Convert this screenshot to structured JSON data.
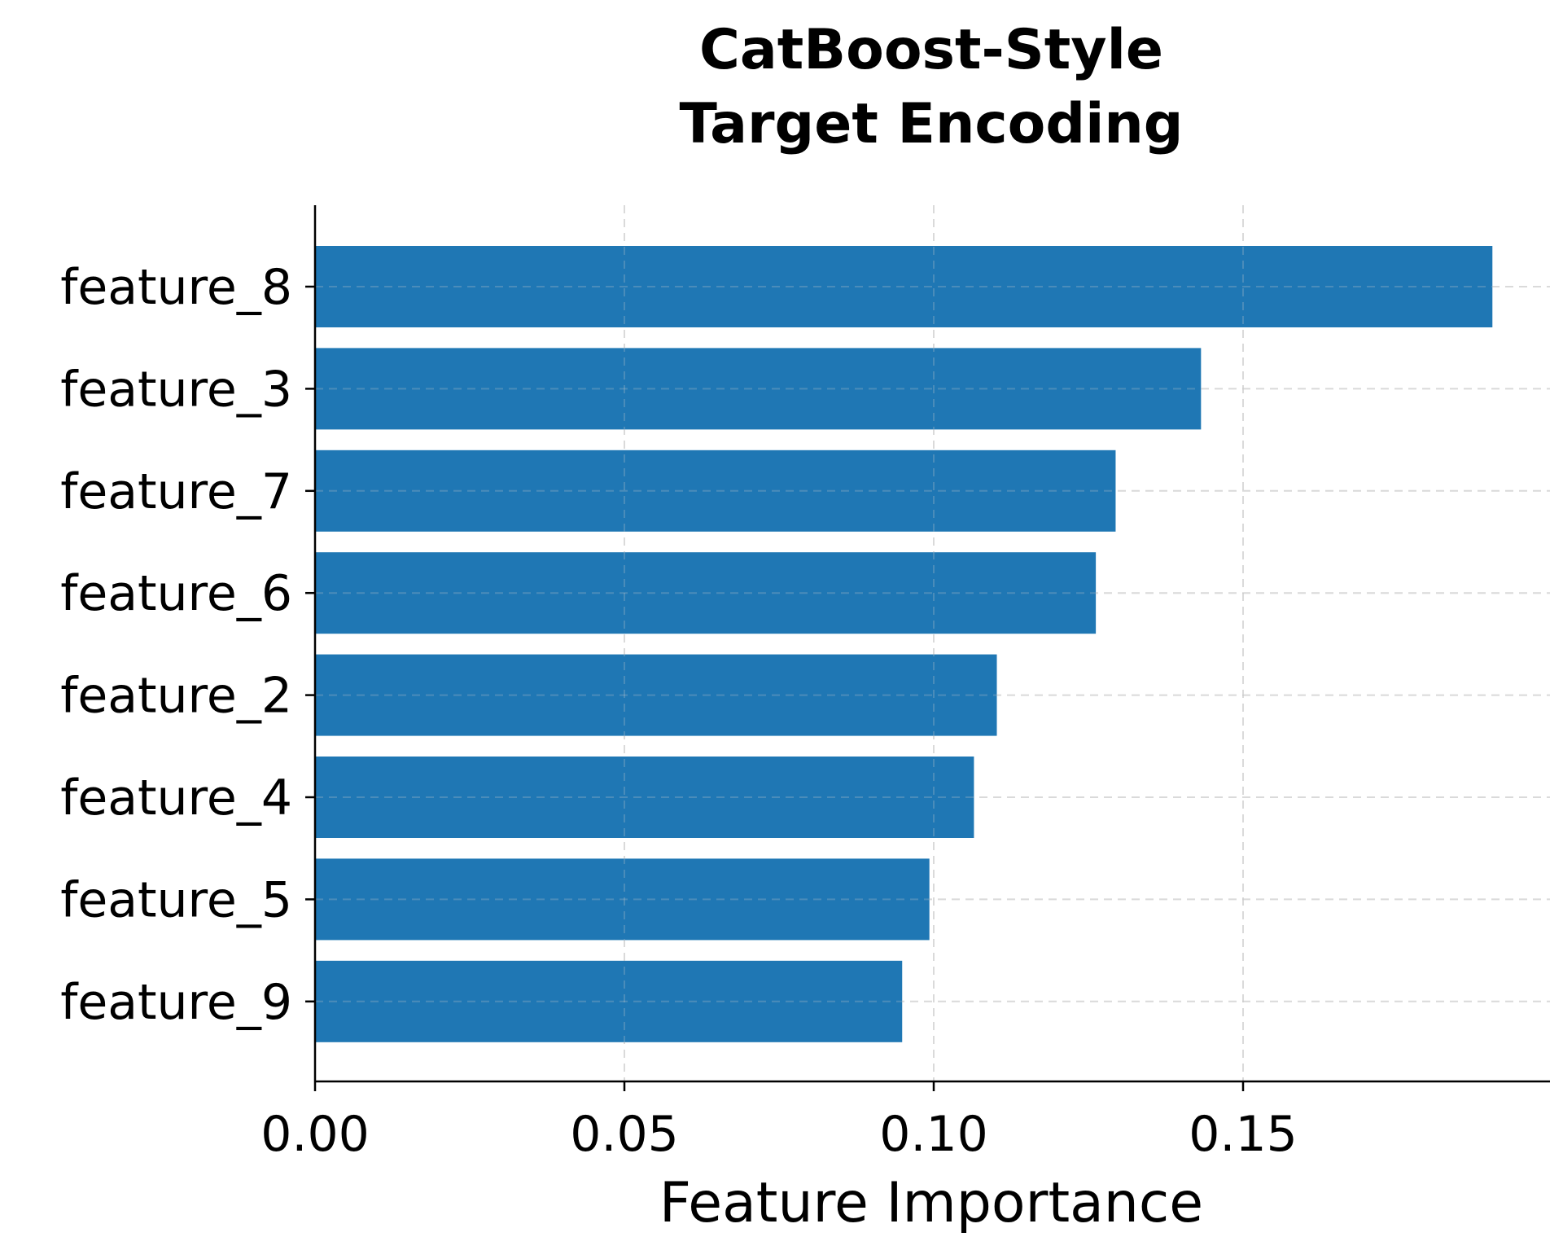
{
  "chart_data": {
    "type": "bar",
    "orientation": "horizontal",
    "title_lines": [
      "CatBoost-Style",
      "Target Encoding"
    ],
    "xlabel": "Feature Importance",
    "ylabel": "",
    "categories": [
      "feature_8",
      "feature_3",
      "feature_7",
      "feature_6",
      "feature_2",
      "feature_4",
      "feature_5",
      "feature_9"
    ],
    "values": [
      0.1903,
      0.1432,
      0.1294,
      0.1262,
      0.1102,
      0.1065,
      0.0993,
      0.0949
    ],
    "xlim": [
      0,
      0.2
    ],
    "xticks": [
      0.0,
      0.05,
      0.1,
      0.15
    ],
    "xtick_labels": [
      "0.00",
      "0.05",
      "0.10",
      "0.15"
    ],
    "grid": true,
    "grid_style": "dashed",
    "bar_color": "#1f77b4",
    "legend": "none"
  }
}
